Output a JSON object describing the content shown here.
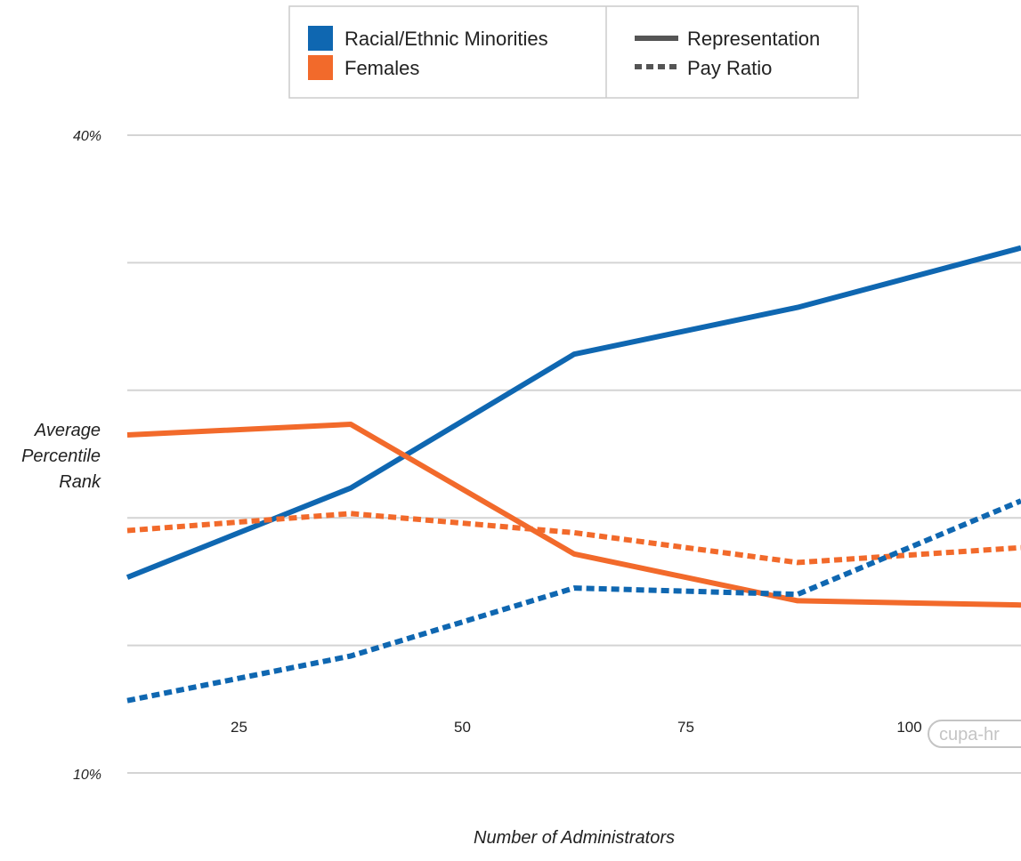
{
  "chart_data": {
    "type": "line",
    "xlabel": "Number of Administrators",
    "ylabel_lines": [
      "Average",
      "Percentile",
      "Rank"
    ],
    "x_ticks": [
      25,
      50,
      75,
      100
    ],
    "y_tick_labels": [
      "40%",
      "10%"
    ],
    "ylim": [
      10,
      40
    ],
    "xlim": [
      12.5,
      112.5
    ],
    "grid": true,
    "legend": {
      "position": "top",
      "colors": [
        {
          "label": "Racial/Ethnic Minorities",
          "color": "#0f67b1"
        },
        {
          "label": "Females",
          "color": "#f26a2b"
        }
      ],
      "styles": [
        {
          "label": "Representation",
          "dash": "solid"
        },
        {
          "label": "Pay Ratio",
          "dash": "dotted"
        }
      ]
    },
    "series": [
      {
        "group": "Racial/Ethnic Minorities",
        "style": "Representation",
        "color": "#0f67b1",
        "dash": "solid",
        "x": [
          12.5,
          37.5,
          62.5,
          87.5,
          112.5
        ],
        "y": [
          19.2,
          23.4,
          29.7,
          31.9,
          34.7
        ]
      },
      {
        "group": "Females",
        "style": "Representation",
        "color": "#f26a2b",
        "dash": "solid",
        "x": [
          12.5,
          37.5,
          62.5,
          87.5,
          112.5
        ],
        "y": [
          25.9,
          26.4,
          20.3,
          18.1,
          17.9
        ]
      },
      {
        "group": "Females",
        "style": "Pay Ratio",
        "color": "#f26a2b",
        "dash": "dotted",
        "x": [
          12.5,
          37.5,
          62.5,
          87.5,
          112.5
        ],
        "y": [
          21.4,
          22.2,
          21.3,
          19.9,
          20.6
        ]
      },
      {
        "group": "Racial/Ethnic Minorities",
        "style": "Pay Ratio",
        "color": "#0f67b1",
        "dash": "dotted",
        "x": [
          12.5,
          37.5,
          62.5,
          87.5,
          112.5
        ],
        "y": [
          13.4,
          15.5,
          18.7,
          18.4,
          22.8
        ]
      }
    ]
  },
  "watermark": {
    "text": "cupa-hr"
  },
  "colors": {
    "grid": "#d4d4d4",
    "legend_border": "#cccccc"
  }
}
